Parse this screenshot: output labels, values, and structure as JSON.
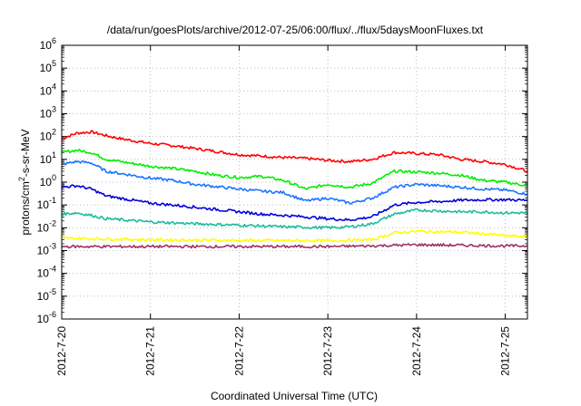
{
  "chart_data": {
    "type": "line",
    "title": "/data/run/goesPlots/archive/2012-07-25/06:00/flux/../flux/5daysMoonFluxes.txt",
    "xlabel": "Coordinated Universal Time (UTC)",
    "ylabel": {
      "pre": "protons/cm",
      "sup": "2",
      "post": "-s-sr-MeV"
    },
    "x_ticks": [
      "2012-7-20",
      "2012-7-21",
      "2012-7-22",
      "2012-7-23",
      "2012-7-24",
      "2012-7-25"
    ],
    "y_ticks": [
      {
        "exp": -6,
        "label": "-6"
      },
      {
        "exp": -5,
        "label": "-5"
      },
      {
        "exp": -4,
        "label": "-4"
      },
      {
        "exp": -3,
        "label": "-3"
      },
      {
        "exp": -2,
        "label": "-2"
      },
      {
        "exp": -1,
        "label": "-1"
      },
      {
        "exp": 0,
        "label": "0"
      },
      {
        "exp": 1,
        "label": "1"
      },
      {
        "exp": 2,
        "label": "2"
      },
      {
        "exp": 3,
        "label": "3"
      },
      {
        "exp": 4,
        "label": "4"
      },
      {
        "exp": 5,
        "label": "5"
      },
      {
        "exp": 6,
        "label": "6"
      }
    ],
    "y_scale": "log",
    "ylim": [
      1e-06,
      1000000.0
    ],
    "xlim": [
      "2012-07-20T00:00",
      "2012-07-25T06:00"
    ],
    "grid": true,
    "series": [
      {
        "color": "#ff0000",
        "x": [
          "2012-07-20T00:00",
          "2012-07-20T04:00",
          "2012-07-20T08:00",
          "2012-07-20T12:00",
          "2012-07-20T16:00",
          "2012-07-21T00:00",
          "2012-07-21T06:00",
          "2012-07-21T12:00",
          "2012-07-21T18:00",
          "2012-07-22T00:00",
          "2012-07-22T06:00",
          "2012-07-22T12:00",
          "2012-07-22T18:00",
          "2012-07-23T00:00",
          "2012-07-23T06:00",
          "2012-07-23T12:00",
          "2012-07-23T18:00",
          "2012-07-24T00:00",
          "2012-07-24T06:00",
          "2012-07-24T12:00",
          "2012-07-24T18:00",
          "2012-07-25T00:00",
          "2012-07-25T06:00"
        ],
        "y": [
          80,
          140,
          160,
          110,
          80,
          50,
          40,
          30,
          22,
          16,
          14,
          12,
          11,
          9,
          8,
          10,
          20,
          18,
          16,
          10,
          8,
          6,
          3
        ]
      },
      {
        "color": "#00ee00",
        "x": [
          "2012-07-20T00:00",
          "2012-07-20T04:00",
          "2012-07-20T08:00",
          "2012-07-20T12:00",
          "2012-07-21T00:00",
          "2012-07-21T06:00",
          "2012-07-21T12:00",
          "2012-07-21T18:00",
          "2012-07-22T00:00",
          "2012-07-22T06:00",
          "2012-07-22T12:00",
          "2012-07-22T18:00",
          "2012-07-23T00:00",
          "2012-07-23T06:00",
          "2012-07-23T12:00",
          "2012-07-23T18:00",
          "2012-07-24T00:00",
          "2012-07-24T06:00",
          "2012-07-24T12:00",
          "2012-07-24T18:00",
          "2012-07-25T00:00",
          "2012-07-25T06:00"
        ],
        "y": [
          20,
          25,
          20,
          10,
          5,
          4,
          3,
          2,
          1.6,
          1.8,
          1.2,
          0.5,
          0.8,
          0.6,
          0.9,
          3,
          2.8,
          2.5,
          2,
          1.2,
          1,
          0.7
        ]
      },
      {
        "color": "#1a75ff",
        "x": [
          "2012-07-20T00:00",
          "2012-07-20T04:00",
          "2012-07-20T08:00",
          "2012-07-20T12:00",
          "2012-07-21T00:00",
          "2012-07-21T06:00",
          "2012-07-21T12:00",
          "2012-07-22T00:00",
          "2012-07-22T06:00",
          "2012-07-22T12:00",
          "2012-07-22T18:00",
          "2012-07-23T00:00",
          "2012-07-23T06:00",
          "2012-07-23T12:00",
          "2012-07-23T18:00",
          "2012-07-24T00:00",
          "2012-07-24T06:00",
          "2012-07-24T12:00",
          "2012-07-24T18:00",
          "2012-07-25T00:00",
          "2012-07-25T06:00"
        ],
        "y": [
          6,
          8,
          7,
          3,
          1.5,
          1.2,
          0.8,
          0.5,
          0.4,
          0.35,
          0.15,
          0.2,
          0.12,
          0.2,
          0.6,
          0.8,
          0.7,
          0.6,
          0.5,
          0.45,
          0.3
        ]
      },
      {
        "color": "#0000dd",
        "x": [
          "2012-07-20T00:00",
          "2012-07-20T04:00",
          "2012-07-20T08:00",
          "2012-07-20T12:00",
          "2012-07-21T00:00",
          "2012-07-21T06:00",
          "2012-07-21T12:00",
          "2012-07-22T00:00",
          "2012-07-22T06:00",
          "2012-07-22T12:00",
          "2012-07-22T18:00",
          "2012-07-23T00:00",
          "2012-07-23T06:00",
          "2012-07-23T12:00",
          "2012-07-23T18:00",
          "2012-07-24T00:00",
          "2012-07-24T06:00",
          "2012-07-24T12:00",
          "2012-07-24T18:00",
          "2012-07-25T00:00",
          "2012-07-25T06:00"
        ],
        "y": [
          0.6,
          0.7,
          0.5,
          0.25,
          0.12,
          0.1,
          0.08,
          0.05,
          0.04,
          0.035,
          0.03,
          0.025,
          0.022,
          0.03,
          0.1,
          0.13,
          0.14,
          0.16,
          0.17,
          0.17,
          0.16
        ]
      },
      {
        "color": "#1abc9c",
        "x": [
          "2012-07-20T00:00",
          "2012-07-20T04:00",
          "2012-07-20T08:00",
          "2012-07-20T12:00",
          "2012-07-21T00:00",
          "2012-07-21T12:00",
          "2012-07-22T00:00",
          "2012-07-22T12:00",
          "2012-07-23T00:00",
          "2012-07-23T06:00",
          "2012-07-23T12:00",
          "2012-07-23T18:00",
          "2012-07-24T00:00",
          "2012-07-24T06:00",
          "2012-07-24T12:00",
          "2012-07-24T18:00",
          "2012-07-25T00:00",
          "2012-07-25T06:00"
        ],
        "y": [
          0.04,
          0.045,
          0.035,
          0.025,
          0.018,
          0.015,
          0.013,
          0.011,
          0.01,
          0.011,
          0.015,
          0.04,
          0.06,
          0.055,
          0.05,
          0.05,
          0.045,
          0.045
        ]
      },
      {
        "color": "#ffff00",
        "x": [
          "2012-07-20T00:00",
          "2012-07-21T00:00",
          "2012-07-22T00:00",
          "2012-07-23T00:00",
          "2012-07-23T12:00",
          "2012-07-23T18:00",
          "2012-07-24T00:00",
          "2012-07-24T12:00",
          "2012-07-25T00:00",
          "2012-07-25T06:00"
        ],
        "y": [
          0.0035,
          0.003,
          0.0028,
          0.0027,
          0.003,
          0.006,
          0.007,
          0.0065,
          0.0045,
          0.004
        ]
      },
      {
        "color": "#993366",
        "x": [
          "2012-07-20T00:00",
          "2012-07-21T00:00",
          "2012-07-22T00:00",
          "2012-07-23T00:00",
          "2012-07-23T12:00",
          "2012-07-24T00:00",
          "2012-07-24T12:00",
          "2012-07-25T00:00",
          "2012-07-25T06:00"
        ],
        "y": [
          0.0015,
          0.0015,
          0.0015,
          0.0015,
          0.0016,
          0.0018,
          0.0017,
          0.0016,
          0.0016
        ]
      }
    ]
  }
}
